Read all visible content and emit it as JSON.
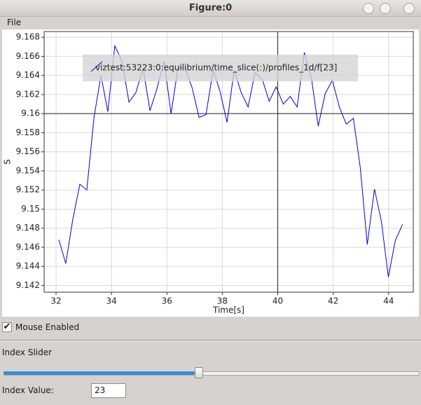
{
  "window": {
    "title": "Figure:0"
  },
  "menu": [
    "File"
  ],
  "chart_data": {
    "type": "line",
    "xlabel": "Time[s]",
    "ylabel": "S",
    "x": [
      32.1,
      32.35,
      32.61,
      32.86,
      33.11,
      33.37,
      33.62,
      33.87,
      34.12,
      34.38,
      34.63,
      34.88,
      35.14,
      35.39,
      35.64,
      35.9,
      36.15,
      36.4,
      36.65,
      36.91,
      37.16,
      37.41,
      37.67,
      37.92,
      38.17,
      38.43,
      38.68,
      38.93,
      39.18,
      39.44,
      39.69,
      39.94,
      40.2,
      40.45,
      40.7,
      40.96,
      41.21,
      41.46,
      41.71,
      41.97,
      42.22,
      42.47,
      42.73,
      42.98,
      43.23,
      43.49,
      43.74,
      43.99,
      44.24,
      44.5
    ],
    "series": [
      {
        "name": "viztest:53223:0:equilibrium/time_slice(:)/profiles_1d/f[23]",
        "color": "#0000dd",
        "values": [
          9.1468,
          9.1443,
          9.149,
          9.1526,
          9.152,
          9.1596,
          9.164,
          9.1602,
          9.1671,
          9.1655,
          9.1612,
          9.1622,
          9.1648,
          9.1603,
          9.1626,
          9.1655,
          9.16,
          9.1648,
          9.1648,
          9.1627,
          9.1596,
          9.1599,
          9.1646,
          9.1623,
          9.1591,
          9.1646,
          9.1622,
          9.1607,
          9.1643,
          9.1636,
          9.1613,
          9.1628,
          9.161,
          9.1618,
          9.1607,
          9.1664,
          9.1638,
          9.1587,
          9.1621,
          9.1635,
          9.1607,
          9.1589,
          9.1595,
          9.1543,
          9.1463,
          9.1521,
          9.1487,
          9.1429,
          9.1467,
          9.1484
        ]
      }
    ],
    "xlim": [
      31.57,
      44.89
    ],
    "ylim": [
      9.1413,
      9.1686
    ],
    "xticks": [
      32,
      34,
      36,
      38,
      40,
      42,
      44
    ],
    "yticks": [
      9.142,
      9.144,
      9.146,
      9.148,
      9.15,
      9.152,
      9.154,
      9.156,
      9.158,
      9.16,
      9.162,
      9.164,
      9.166,
      9.168
    ],
    "grid": true,
    "legend": "upper center",
    "crosshair": {
      "x": 40,
      "y": 9.16
    }
  },
  "controls": {
    "checkbox": "Mouse Enabled",
    "checked": true,
    "slider_label": "Index Slider",
    "value_label": "Index Value:",
    "index": 23
  }
}
